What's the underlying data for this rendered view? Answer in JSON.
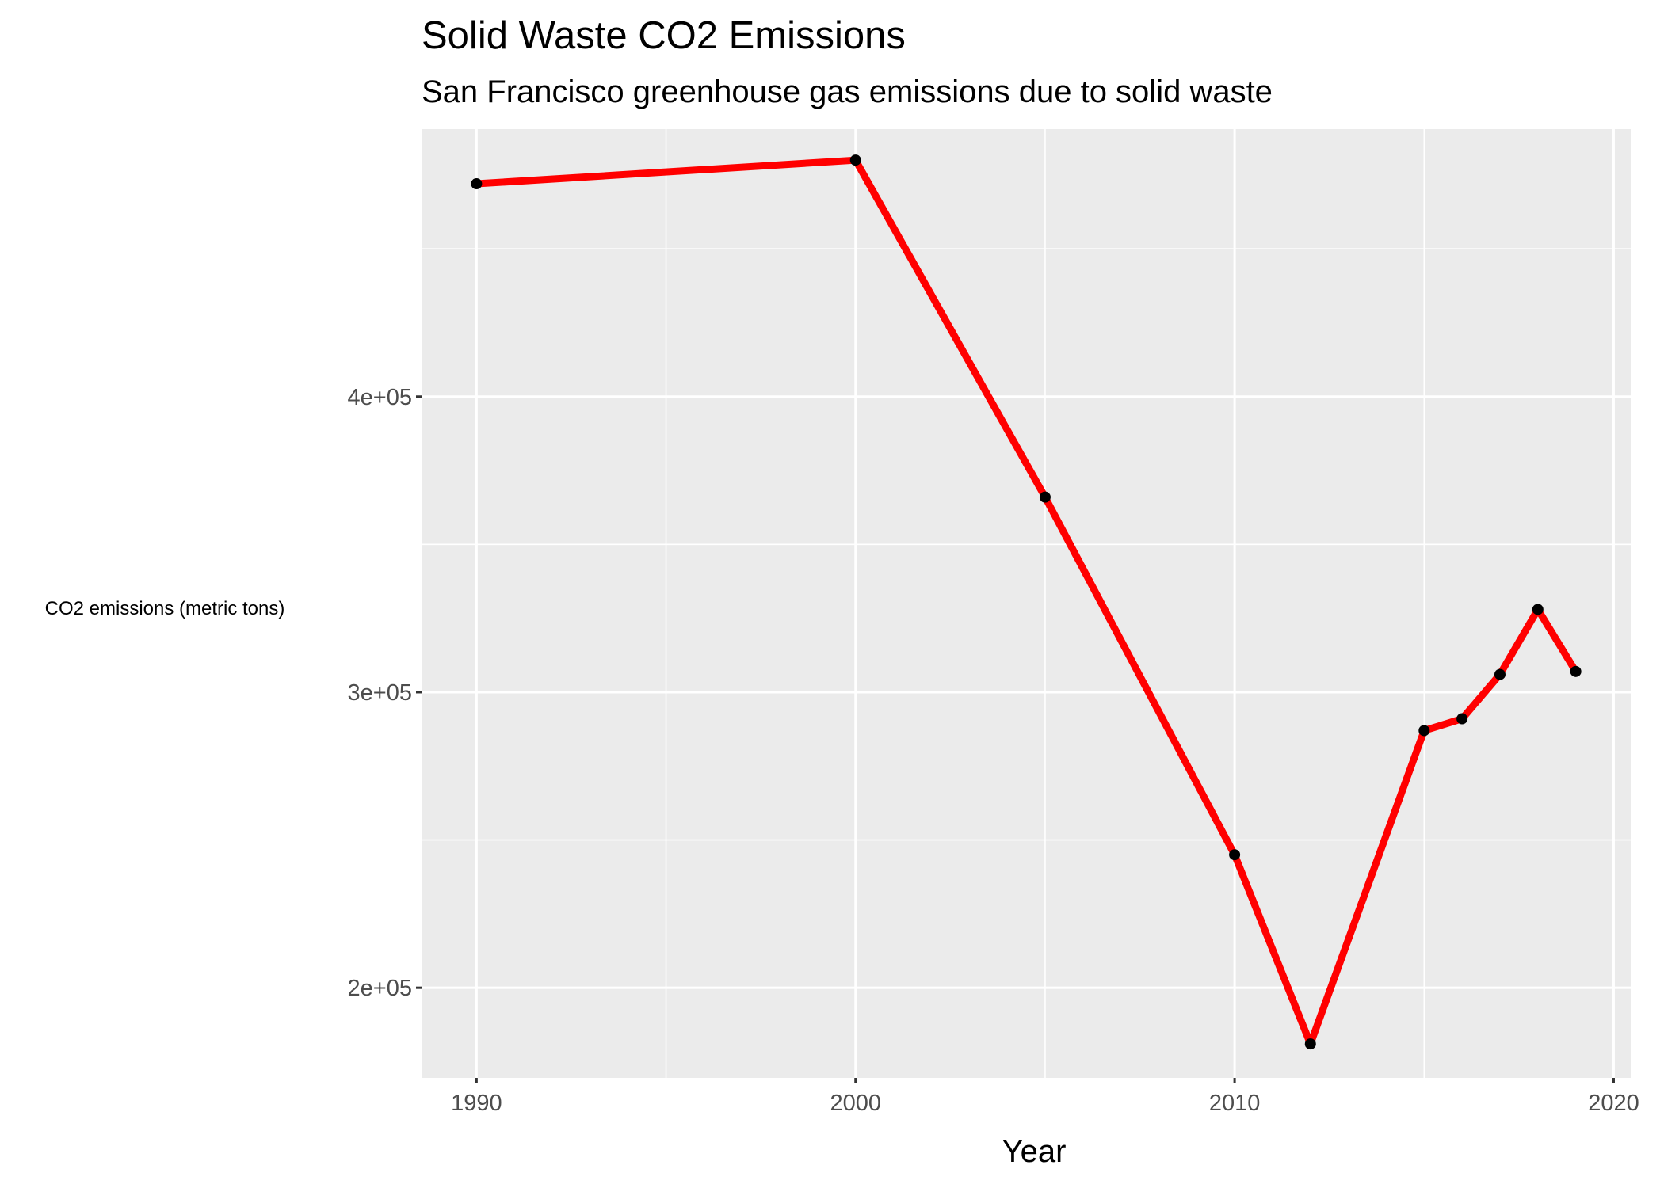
{
  "chart_data": {
    "type": "line",
    "title": "Solid Waste CO2 Emissions",
    "subtitle": "San Francisco greenhouse gas emissions due to solid waste",
    "xlabel": "Year",
    "ylabel": "CO2 emissions (metric tons)",
    "x": [
      1990,
      2000,
      2005,
      2010,
      2012,
      2015,
      2016,
      2017,
      2018,
      2019
    ],
    "series": [
      {
        "values": [
          472000,
          480000,
          366000,
          245000,
          181000,
          287000,
          291000,
          306000,
          328000,
          307000
        ],
        "color": "#ff0000"
      }
    ],
    "point_color": "#000000",
    "xlim": [
      1988.55,
      2020.45
    ],
    "ylim": [
      169500,
      490500
    ],
    "x_ticks": [
      1990,
      2000,
      2010,
      2020
    ],
    "x_tick_labels": [
      "1990",
      "2000",
      "2010",
      "2020"
    ],
    "y_ticks": [
      200000,
      300000,
      400000
    ],
    "y_tick_labels": [
      "2e+05",
      "3e+05",
      "4e+05"
    ],
    "grid": true,
    "legend": "none",
    "panel_background": "#ebebeb",
    "grid_color": "#ffffff"
  }
}
